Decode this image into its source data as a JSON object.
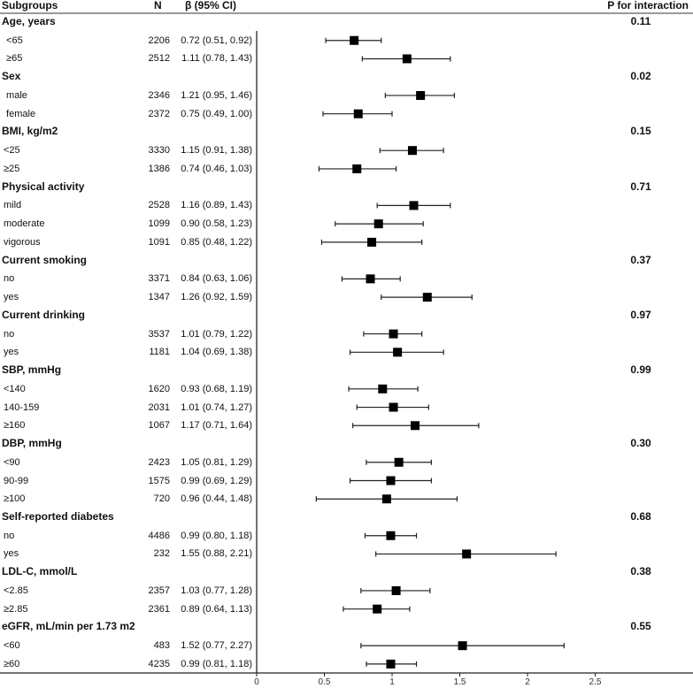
{
  "chart_data": {
    "type": "forest",
    "headers": {
      "subgroups": "Subgroups",
      "n": "N",
      "beta": "β (95% CI)",
      "p": "P for interaction"
    },
    "xlim": [
      0,
      2.5
    ],
    "xticks": [
      "0",
      "0.5",
      "1",
      "1.5",
      "2",
      "2.5"
    ],
    "xtick_values": [
      0,
      0.5,
      1,
      1.5,
      2,
      2.5
    ],
    "groups": [
      {
        "label": "Age, years",
        "p": "0.11",
        "rows": [
          {
            "label": " <65",
            "n": "2206",
            "ci_text": "0.72 (0.51, 0.92)",
            "est": 0.72,
            "lo": 0.51,
            "hi": 0.92
          },
          {
            "label": " ≥65",
            "n": "2512",
            "ci_text": "1.11 (0.78, 1.43)",
            "est": 1.11,
            "lo": 0.78,
            "hi": 1.43
          }
        ]
      },
      {
        "label": "Sex",
        "p": "0.02",
        "rows": [
          {
            "label": " male",
            "n": "2346",
            "ci_text": "1.21 (0.95, 1.46)",
            "est": 1.21,
            "lo": 0.95,
            "hi": 1.46
          },
          {
            "label": " female",
            "n": "2372",
            "ci_text": "0.75 (0.49, 1.00)",
            "est": 0.75,
            "lo": 0.49,
            "hi": 1.0
          }
        ]
      },
      {
        "label": "BMI, kg/m2",
        "p": "0.15",
        "rows": [
          {
            "label": "<25",
            "n": "3330",
            "ci_text": "1.15 (0.91, 1.38)",
            "est": 1.15,
            "lo": 0.91,
            "hi": 1.38
          },
          {
            "label": "≥25",
            "n": "1386",
            "ci_text": "0.74 (0.46, 1.03)",
            "est": 0.74,
            "lo": 0.46,
            "hi": 1.03
          }
        ]
      },
      {
        "label": "Physical activity",
        "p": "0.71",
        "rows": [
          {
            "label": "mild",
            "n": "2528",
            "ci_text": "1.16 (0.89, 1.43)",
            "est": 1.16,
            "lo": 0.89,
            "hi": 1.43
          },
          {
            "label": "moderate",
            "n": "1099",
            "ci_text": "0.90 (0.58, 1.23)",
            "est": 0.9,
            "lo": 0.58,
            "hi": 1.23
          },
          {
            "label": "vigorous",
            "n": "1091",
            "ci_text": "0.85 (0.48, 1.22)",
            "est": 0.85,
            "lo": 0.48,
            "hi": 1.22
          }
        ]
      },
      {
        "label": "Current smoking",
        "p": "0.37",
        "rows": [
          {
            "label": "no",
            "n": "3371",
            "ci_text": "0.84 (0.63, 1.06)",
            "est": 0.84,
            "lo": 0.63,
            "hi": 1.06
          },
          {
            "label": "yes",
            "n": "1347",
            "ci_text": "1.26 (0.92, 1.59)",
            "est": 1.26,
            "lo": 0.92,
            "hi": 1.59
          }
        ]
      },
      {
        "label": "Current drinking",
        "p": "0.97",
        "rows": [
          {
            "label": "no",
            "n": "3537",
            "ci_text": "1.01 (0.79, 1.22)",
            "est": 1.01,
            "lo": 0.79,
            "hi": 1.22
          },
          {
            "label": "yes",
            "n": "1181",
            "ci_text": "1.04 (0.69, 1.38)",
            "est": 1.04,
            "lo": 0.69,
            "hi": 1.38
          }
        ]
      },
      {
        "label": "SBP, mmHg",
        "p": "0.99",
        "rows": [
          {
            "label": "<140",
            "n": "1620",
            "ci_text": "0.93 (0.68, 1.19)",
            "est": 0.93,
            "lo": 0.68,
            "hi": 1.19
          },
          {
            "label": "140-159",
            "n": "2031",
            "ci_text": "1.01 (0.74, 1.27)",
            "est": 1.01,
            "lo": 0.74,
            "hi": 1.27
          },
          {
            "label": "≥160",
            "n": "1067",
            "ci_text": "1.17 (0.71, 1.64)",
            "est": 1.17,
            "lo": 0.71,
            "hi": 1.64
          }
        ]
      },
      {
        "label": "DBP, mmHg",
        "p": "0.30",
        "rows": [
          {
            "label": "<90",
            "n": "2423",
            "ci_text": "1.05 (0.81, 1.29)",
            "est": 1.05,
            "lo": 0.81,
            "hi": 1.29
          },
          {
            "label": "90-99",
            "n": "1575",
            "ci_text": "0.99 (0.69, 1.29)",
            "est": 0.99,
            "lo": 0.69,
            "hi": 1.29
          },
          {
            "label": "≥100",
            "n": "720",
            "ci_text": "0.96 (0.44, 1.48)",
            "est": 0.96,
            "lo": 0.44,
            "hi": 1.48
          }
        ]
      },
      {
        "label": "Self-reported diabetes",
        "p": "0.68",
        "rows": [
          {
            "label": "no",
            "n": "4486",
            "ci_text": "0.99 (0.80, 1.18)",
            "est": 0.99,
            "lo": 0.8,
            "hi": 1.18
          },
          {
            "label": "yes",
            "n": "232",
            "ci_text": "1.55 (0.88, 2.21)",
            "est": 1.55,
            "lo": 0.88,
            "hi": 2.21
          }
        ]
      },
      {
        "label": "LDL-C, mmol/L",
        "p": "0.38",
        "rows": [
          {
            "label": "<2.85",
            "n": "2357",
            "ci_text": "1.03 (0.77, 1.28)",
            "est": 1.03,
            "lo": 0.77,
            "hi": 1.28
          },
          {
            "label": "≥2.85",
            "n": "2361",
            "ci_text": "0.89 (0.64, 1.13)",
            "est": 0.89,
            "lo": 0.64,
            "hi": 1.13
          }
        ]
      },
      {
        "label": "eGFR, mL/min per 1.73 m2",
        "p": "0.55",
        "rows": [
          {
            "label": "<60",
            "n": "483",
            "ci_text": "1.52 (0.77, 2.27)",
            "est": 1.52,
            "lo": 0.77,
            "hi": 2.27
          },
          {
            "label": "≥60",
            "n": "4235",
            "ci_text": "0.99 (0.81, 1.18)",
            "est": 0.99,
            "lo": 0.81,
            "hi": 1.18
          }
        ]
      }
    ]
  }
}
